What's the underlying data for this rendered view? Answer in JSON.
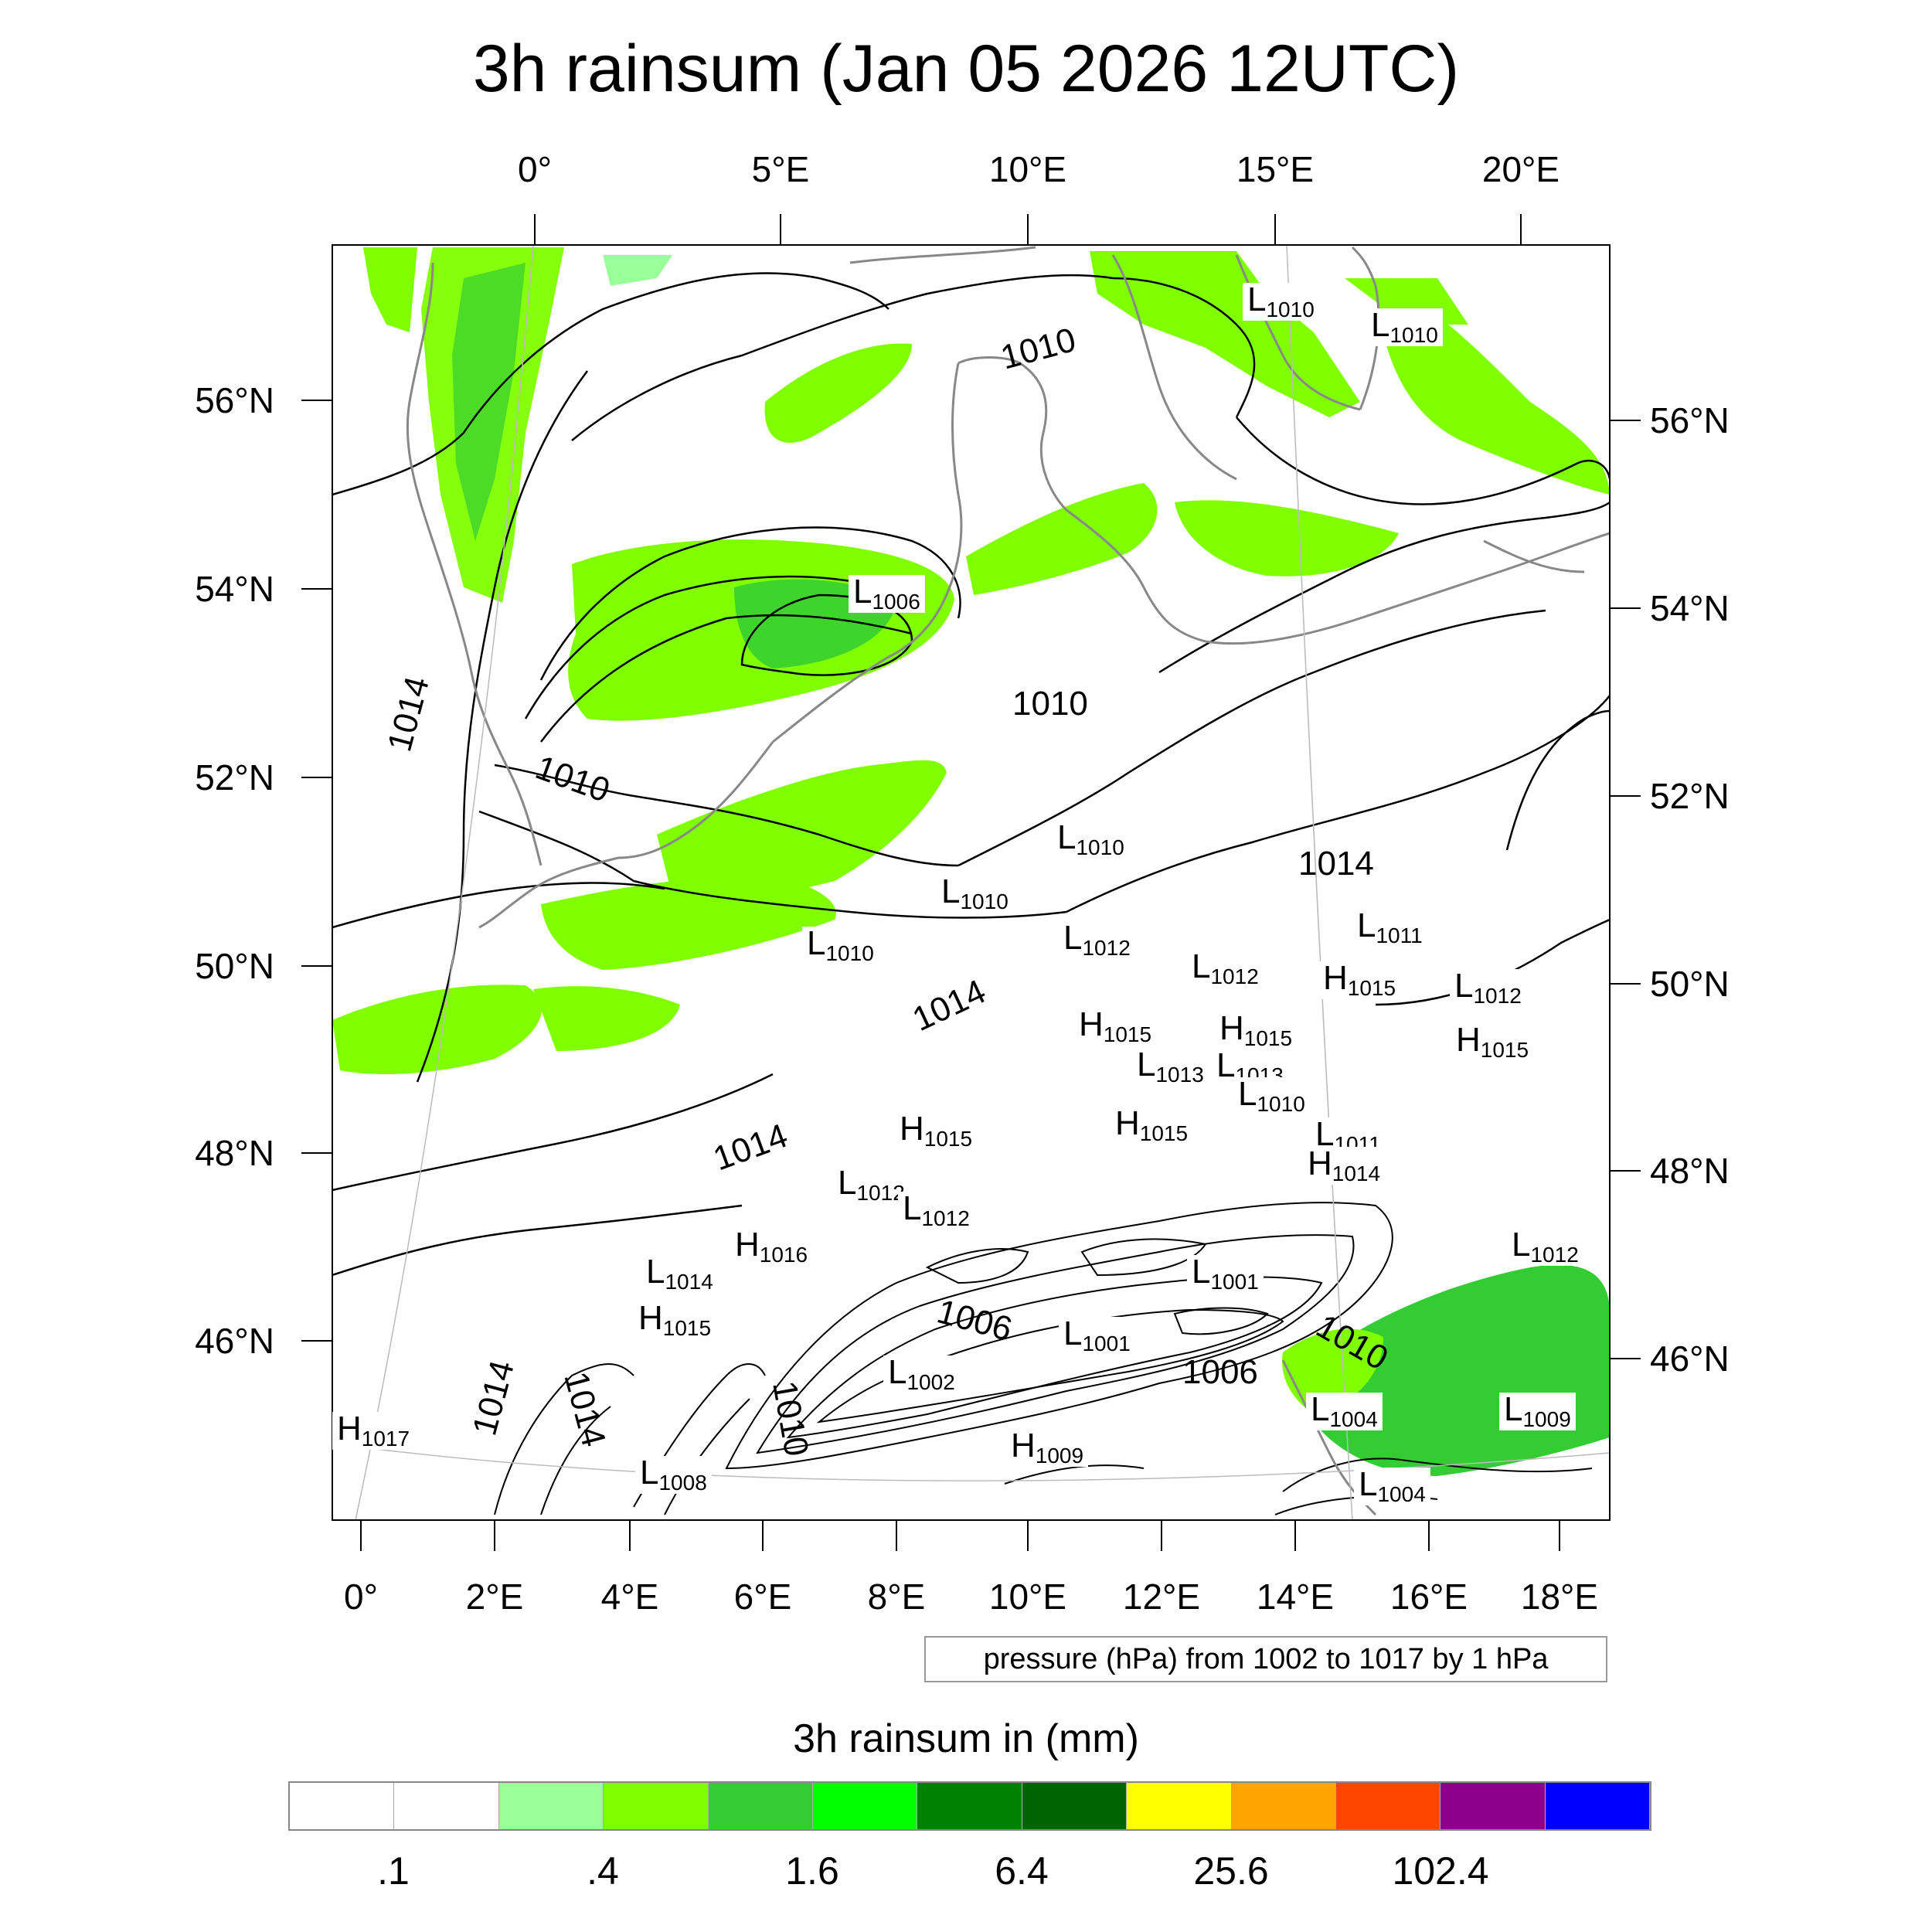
{
  "title": "3h rainsum (Jan 05 2026 12UTC)",
  "top_axis_labels": [
    "0°",
    "5°E",
    "10°E",
    "15°E",
    "20°E"
  ],
  "bottom_axis_labels": [
    "0°",
    "2°E",
    "4°E",
    "6°E",
    "8°E",
    "10°E",
    "12°E",
    "14°E",
    "16°E",
    "18°E"
  ],
  "left_axis_labels": [
    "56°N",
    "54°N",
    "52°N",
    "50°N",
    "48°N",
    "46°N"
  ],
  "right_axis_labels": [
    "56°N",
    "54°N",
    "52°N",
    "50°N",
    "48°N",
    "46°N"
  ],
  "isobar_labels": [
    "1010",
    "1010",
    "1010",
    "1014",
    "1014",
    "1014",
    "1014",
    "1014",
    "1006",
    "1006",
    "1010",
    "1010",
    "1014"
  ],
  "pressure_centers": [
    {
      "type": "L",
      "value": "1010"
    },
    {
      "type": "L",
      "value": "1010"
    },
    {
      "type": "L",
      "value": "1006"
    },
    {
      "type": "L",
      "value": "1010"
    },
    {
      "type": "L",
      "value": "1010"
    },
    {
      "type": "L",
      "value": "1010"
    },
    {
      "type": "L",
      "value": "1012"
    },
    {
      "type": "L",
      "value": "1012"
    },
    {
      "type": "L",
      "value": "1011"
    },
    {
      "type": "L",
      "value": "1012"
    },
    {
      "type": "H",
      "value": "1015"
    },
    {
      "type": "H",
      "value": "1015"
    },
    {
      "type": "H",
      "value": "1015"
    },
    {
      "type": "H",
      "value": "1015"
    },
    {
      "type": "L",
      "value": "1013"
    },
    {
      "type": "L",
      "value": "1013"
    },
    {
      "type": "L",
      "value": "1010"
    },
    {
      "type": "H",
      "value": "1015"
    },
    {
      "type": "H",
      "value": "1015"
    },
    {
      "type": "L",
      "value": "1011"
    },
    {
      "type": "H",
      "value": "1014"
    },
    {
      "type": "L",
      "value": "1012"
    },
    {
      "type": "L",
      "value": "1012"
    },
    {
      "type": "H",
      "value": "1016"
    },
    {
      "type": "L",
      "value": "1014"
    },
    {
      "type": "H",
      "value": "1015"
    },
    {
      "type": "L",
      "value": "1001"
    },
    {
      "type": "L",
      "value": "1001"
    },
    {
      "type": "L",
      "value": "1002"
    },
    {
      "type": "L",
      "value": "1004"
    },
    {
      "type": "L",
      "value": "1009"
    },
    {
      "type": "L",
      "value": "1012"
    },
    {
      "type": "H",
      "value": "1017"
    },
    {
      "type": "L",
      "value": "1008"
    },
    {
      "type": "H",
      "value": "1009"
    },
    {
      "type": "L",
      "value": "1004"
    }
  ],
  "contour_note": "pressure (hPa) from 1002 to 1017 by 1 hPa",
  "colorbar": {
    "title": "3h rainsum in (mm)",
    "colors": [
      "#ffffff",
      "#ffffff",
      "#99ff99",
      "#80ff00",
      "#33cc33",
      "#00ff00",
      "#008000",
      "#006400",
      "#ffff00",
      "#ffa500",
      "#ff4500",
      "#8b008b",
      "#0000ff"
    ],
    "tick_labels": [
      ".1",
      ".4",
      "1.6",
      "6.4",
      "25.6",
      "102.4"
    ]
  }
}
